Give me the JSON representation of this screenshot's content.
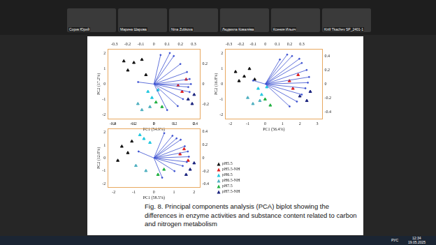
{
  "participants": [
    "Сорик Юрий",
    "Марина Шарова",
    "Nina Zubkova",
    "Людмила Ковалёва",
    "Ксения Ильич",
    "Kirill Tkachev SP_2401-1"
  ],
  "chart_data": [
    {
      "type": "biplot",
      "x_label": "PC1 (54.9%)",
      "y_label": "PC2 (17.2%)",
      "grid": false,
      "xlim": [
        -2.3,
        2.3
      ],
      "xticks": [
        -2,
        -1,
        0,
        1,
        2
      ],
      "ylim": [
        -2.3,
        2.3
      ],
      "yticks": [
        -2,
        -1,
        0,
        1,
        2
      ],
      "x2lim": [
        -0.35,
        0.35
      ],
      "x2ticks": [
        -0.3,
        -0.2,
        -0.1,
        0,
        0.1,
        0.2,
        0.3
      ],
      "y2lim": [
        -0.35,
        0.35
      ],
      "y2ticks": [
        -0.2,
        0,
        0.2
      ],
      "series": [
        {
          "color": "#111111",
          "marker": "triangle",
          "values": [
            [
              -1.5,
              1.5
            ],
            [
              -1.0,
              1.4
            ],
            [
              -0.6,
              1.6
            ],
            [
              -1.3,
              0.9
            ],
            [
              -0.4,
              0.6
            ]
          ]
        },
        {
          "color": "#e02020",
          "marker": "triangle",
          "values": [
            [
              1.2,
              -0.1
            ],
            [
              1.6,
              0.3
            ],
            [
              1.4,
              -0.5
            ]
          ]
        },
        {
          "color": "#22c8e0",
          "marker": "triangle",
          "values": [
            [
              -0.3,
              -0.5
            ],
            [
              -0.1,
              -0.9
            ],
            [
              0.2,
              -0.4
            ]
          ]
        },
        {
          "color": "#4fb0c0",
          "marker": "triangle",
          "values": [
            [
              -0.8,
              -1.3
            ],
            [
              -0.6,
              -1.7
            ],
            [
              -0.2,
              -1.5
            ]
          ]
        },
        {
          "color": "#20b040",
          "marker": "triangle",
          "values": [
            [
              0.1,
              -1.2
            ],
            [
              0.4,
              -1.5
            ]
          ]
        },
        {
          "color": "#1a237e",
          "marker": "triangle",
          "values": [
            [
              1.7,
              -1.0
            ],
            [
              1.9,
              -1.3
            ],
            [
              2.0,
              -0.7
            ]
          ]
        }
      ],
      "loadings": {
        "color": "#3a4fd0",
        "axis": "y2",
        "values": [
          [
            0.12,
            0.31
          ],
          [
            0.15,
            0.28
          ],
          [
            0.25,
            0.12
          ],
          [
            0.27,
            0.05
          ],
          [
            0.28,
            0.0
          ],
          [
            0.26,
            -0.03
          ],
          [
            0.27,
            -0.08
          ],
          [
            0.22,
            -0.15
          ],
          [
            0.18,
            -0.22
          ],
          [
            0.1,
            -0.26
          ],
          [
            0.05,
            0.29
          ],
          [
            0.2,
            0.2
          ],
          [
            -0.12,
            0.02
          ]
        ]
      }
    },
    {
      "type": "biplot",
      "x_label": "PC1 (56.4%)",
      "y_label": "PC2 (16.8%)",
      "grid": false,
      "xlim": [
        -2.3,
        3.3
      ],
      "xticks": [
        -2,
        -1,
        0,
        1,
        2,
        3
      ],
      "ylim": [
        -2.3,
        2.3
      ],
      "yticks": [
        -2,
        -1,
        0,
        1,
        2
      ],
      "x2lim": [
        -0.33,
        0.47
      ],
      "x2ticks": [
        -0.3,
        -0.2,
        -0.1,
        0,
        0.1,
        0.2,
        0.3
      ],
      "y2lim": [
        -0.5,
        0.5
      ],
      "y2ticks": [
        -0.4,
        -0.2,
        0,
        0.2,
        0.4
      ],
      "series": [
        {
          "color": "#111111",
          "marker": "triangle",
          "values": [
            [
              -1.7,
              0.8
            ],
            [
              -1.2,
              0.5
            ],
            [
              -0.9,
              1.0
            ],
            [
              -1.5,
              0.2
            ],
            [
              -0.6,
              0.3
            ]
          ]
        },
        {
          "color": "#e02020",
          "marker": "triangle",
          "values": [
            [
              1.4,
              0.2
            ],
            [
              1.9,
              0.6
            ],
            [
              1.6,
              -0.3
            ]
          ]
        },
        {
          "color": "#22c8e0",
          "marker": "triangle",
          "values": [
            [
              -0.4,
              -0.3
            ],
            [
              -0.2,
              -0.7
            ],
            [
              0.1,
              -0.2
            ]
          ]
        },
        {
          "color": "#4fb0c0",
          "marker": "triangle",
          "values": [
            [
              -1.0,
              -0.9
            ],
            [
              -0.7,
              -1.3
            ],
            [
              -0.3,
              -1.1
            ]
          ]
        },
        {
          "color": "#20b040",
          "marker": "triangle",
          "values": [
            [
              0.0,
              -1.0
            ],
            [
              0.3,
              -1.4
            ]
          ]
        },
        {
          "color": "#1a237e",
          "marker": "triangle",
          "values": [
            [
              2.0,
              -0.8
            ],
            [
              2.4,
              -1.1
            ],
            [
              2.6,
              -0.5
            ]
          ]
        }
      ],
      "loadings": {
        "color": "#3a4fd0",
        "axis": "y2",
        "values": [
          [
            0.18,
            0.42
          ],
          [
            0.22,
            0.4
          ],
          [
            0.3,
            0.3
          ],
          [
            0.34,
            0.2
          ],
          [
            0.36,
            0.1
          ],
          [
            0.35,
            0.02
          ],
          [
            0.33,
            -0.06
          ],
          [
            0.3,
            -0.15
          ],
          [
            0.26,
            -0.25
          ],
          [
            0.2,
            -0.32
          ],
          [
            0.12,
            0.35
          ],
          [
            0.28,
            0.36
          ],
          [
            -0.1,
            0.05
          ]
        ]
      }
    },
    {
      "type": "biplot",
      "x_label": "PC1 (58.5%)",
      "y_label": "PC2 (12.0%)",
      "grid": false,
      "xlim": [
        -2.3,
        2.3
      ],
      "xticks": [
        -2,
        -1,
        0,
        1,
        2
      ],
      "ylim": [
        -2.3,
        2.3
      ],
      "yticks": [
        -2,
        -1,
        0,
        1,
        2
      ],
      "x2lim": [
        -0.45,
        0.45
      ],
      "x2ticks": [
        -0.4,
        -0.2,
        0,
        0.2,
        0.4
      ],
      "y2lim": [
        -0.45,
        0.45
      ],
      "y2ticks": [
        -0.4,
        -0.2,
        0,
        0.2,
        0.4
      ],
      "series": [
        {
          "color": "#111111",
          "marker": "triangle",
          "values": [
            [
              -1.6,
              0.9
            ],
            [
              -1.3,
              0.4
            ],
            [
              -1.8,
              -0.2
            ],
            [
              -1.1,
              1.3
            ]
          ]
        },
        {
          "color": "#e02020",
          "marker": "triangle",
          "values": [
            [
              1.3,
              0.3
            ],
            [
              1.7,
              -0.2
            ],
            [
              1.5,
              0.7
            ]
          ]
        },
        {
          "color": "#22c8e0",
          "marker": "triangle",
          "values": [
            [
              -0.5,
              1.5
            ],
            [
              -0.2,
              1.2
            ],
            [
              -0.7,
              1.8
            ]
          ]
        },
        {
          "color": "#4fb0c0",
          "marker": "triangle",
          "values": [
            [
              -0.9,
              -0.6
            ],
            [
              -0.4,
              -1.0
            ]
          ]
        },
        {
          "color": "#20b040",
          "marker": "triangle",
          "values": [
            [
              0.2,
              -1.3
            ],
            [
              0.5,
              -0.9
            ]
          ]
        },
        {
          "color": "#1a237e",
          "marker": "triangle",
          "values": [
            [
              1.8,
              -0.9
            ],
            [
              2.0,
              -0.4
            ],
            [
              1.6,
              -1.3
            ]
          ]
        }
      ],
      "loadings": {
        "color": "#3a4fd0",
        "axis": "y2",
        "values": [
          [
            0.1,
            0.38
          ],
          [
            0.18,
            0.34
          ],
          [
            0.26,
            0.28
          ],
          [
            0.3,
            0.18
          ],
          [
            0.33,
            0.1
          ],
          [
            0.34,
            0.02
          ],
          [
            0.32,
            -0.06
          ],
          [
            0.28,
            -0.12
          ],
          [
            0.2,
            -0.2
          ],
          [
            0.08,
            -0.3
          ],
          [
            -0.15,
            0.1
          ],
          [
            0.22,
            0.3
          ]
        ]
      }
    }
  ],
  "shared_legend": [
    {
      "name": "pH5.5",
      "color": "#111111",
      "marker": "triangle"
    },
    {
      "name": "pH5.5-NH",
      "color": "#e02020",
      "marker": "triangle"
    },
    {
      "name": "pH6.5",
      "color": "#22c8e0",
      "marker": "triangle"
    },
    {
      "name": "pH6.5-NH",
      "color": "#4fb0c0",
      "marker": "triangle"
    },
    {
      "name": "pH7.5",
      "color": "#20b040",
      "marker": "triangle"
    },
    {
      "name": "pH7.5-NH",
      "color": "#1a237e",
      "marker": "triangle"
    }
  ],
  "caption": "Fig. 8. Principal components analysis (PCA) biplot showing the differences in enzyme activities and substance content related to carbon and nitrogen metabolism",
  "taskbar": {
    "language": "РУС",
    "time": "12:34",
    "date": "19.05.2025"
  }
}
